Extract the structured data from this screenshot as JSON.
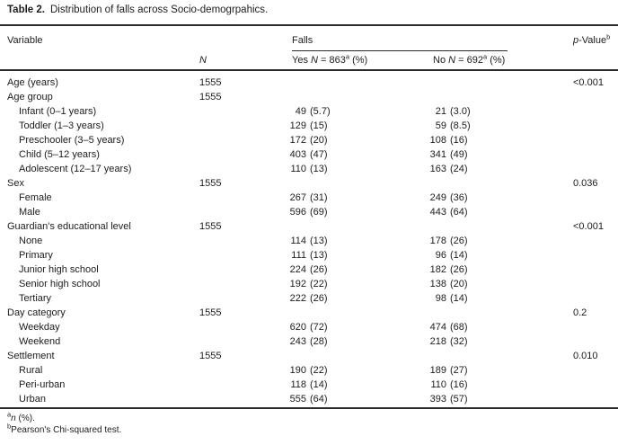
{
  "title": {
    "label": "Table 2.",
    "text": "Distribution of falls across Socio-demogrpahics."
  },
  "table": {
    "headers": {
      "variable": "Variable",
      "falls_group": "Falls",
      "n_italic": "N",
      "yes": {
        "pre": "Yes ",
        "n": "N",
        "eq": " = 863",
        "sup": "a",
        "suffix": " (%)"
      },
      "no": {
        "pre": "No ",
        "n": "N",
        "eq": " = 692",
        "sup": "a",
        "suffix": " (%)"
      },
      "p": {
        "italic": "p",
        "rest": "-Value",
        "sup": "b"
      }
    },
    "rows": [
      {
        "label": "Age (years)",
        "indent": false,
        "n": "1555",
        "p": "<0.001"
      },
      {
        "label": "Age group",
        "indent": false,
        "n": "1555"
      },
      {
        "label": "Infant (0–1 years)",
        "indent": true,
        "yes_n": "49",
        "yes_pct": "(5.7)",
        "no_n": "21",
        "no_pct": "(3.0)"
      },
      {
        "label": "Toddler (1–3 years)",
        "indent": true,
        "yes_n": "129",
        "yes_pct": "(15)",
        "no_n": "59",
        "no_pct": "(8.5)"
      },
      {
        "label": "Preschooler (3–5 years)",
        "indent": true,
        "yes_n": "172",
        "yes_pct": "(20)",
        "no_n": "108",
        "no_pct": "(16)"
      },
      {
        "label": "Child (5–12 years)",
        "indent": true,
        "yes_n": "403",
        "yes_pct": "(47)",
        "no_n": "341",
        "no_pct": "(49)"
      },
      {
        "label": "Adolescent (12–17 years)",
        "indent": true,
        "yes_n": "110",
        "yes_pct": "(13)",
        "no_n": "163",
        "no_pct": "(24)"
      },
      {
        "label": "Sex",
        "indent": false,
        "n": "1555",
        "p": "0.036"
      },
      {
        "label": "Female",
        "indent": true,
        "yes_n": "267",
        "yes_pct": "(31)",
        "no_n": "249",
        "no_pct": "(36)"
      },
      {
        "label": "Male",
        "indent": true,
        "yes_n": "596",
        "yes_pct": "(69)",
        "no_n": "443",
        "no_pct": "(64)"
      },
      {
        "label": "Guardian's educational level",
        "indent": false,
        "n": "1555",
        "p": "<0.001"
      },
      {
        "label": "None",
        "indent": true,
        "yes_n": "114",
        "yes_pct": "(13)",
        "no_n": "178",
        "no_pct": "(26)"
      },
      {
        "label": "Primary",
        "indent": true,
        "yes_n": "111",
        "yes_pct": "(13)",
        "no_n": "96",
        "no_pct": "(14)"
      },
      {
        "label": "Junior high school",
        "indent": true,
        "yes_n": "224",
        "yes_pct": "(26)",
        "no_n": "182",
        "no_pct": "(26)"
      },
      {
        "label": "Senior high school",
        "indent": true,
        "yes_n": "192",
        "yes_pct": "(22)",
        "no_n": "138",
        "no_pct": "(20)"
      },
      {
        "label": "Tertiary",
        "indent": true,
        "yes_n": "222",
        "yes_pct": "(26)",
        "no_n": "98",
        "no_pct": "(14)"
      },
      {
        "label": "Day category",
        "indent": false,
        "n": "1555",
        "p": "0.2"
      },
      {
        "label": "Weekday",
        "indent": true,
        "yes_n": "620",
        "yes_pct": "(72)",
        "no_n": "474",
        "no_pct": "(68)"
      },
      {
        "label": "Weekend",
        "indent": true,
        "yes_n": "243",
        "yes_pct": "(28)",
        "no_n": "218",
        "no_pct": "(32)"
      },
      {
        "label": "Settlement",
        "indent": false,
        "n": "1555",
        "p": "0.010"
      },
      {
        "label": "Rural",
        "indent": true,
        "yes_n": "190",
        "yes_pct": "(22)",
        "no_n": "189",
        "no_pct": "(27)"
      },
      {
        "label": "Peri-urban",
        "indent": true,
        "yes_n": "118",
        "yes_pct": "(14)",
        "no_n": "110",
        "no_pct": "(16)"
      },
      {
        "label": "Urban",
        "indent": true,
        "yes_n": "555",
        "yes_pct": "(64)",
        "no_n": "393",
        "no_pct": "(57)"
      }
    ]
  },
  "footnotes": {
    "a": {
      "sup": "a",
      "italic": "n",
      "text": " (%)."
    },
    "b": {
      "sup": "b",
      "text": "Pearson's Chi-squared test."
    }
  }
}
